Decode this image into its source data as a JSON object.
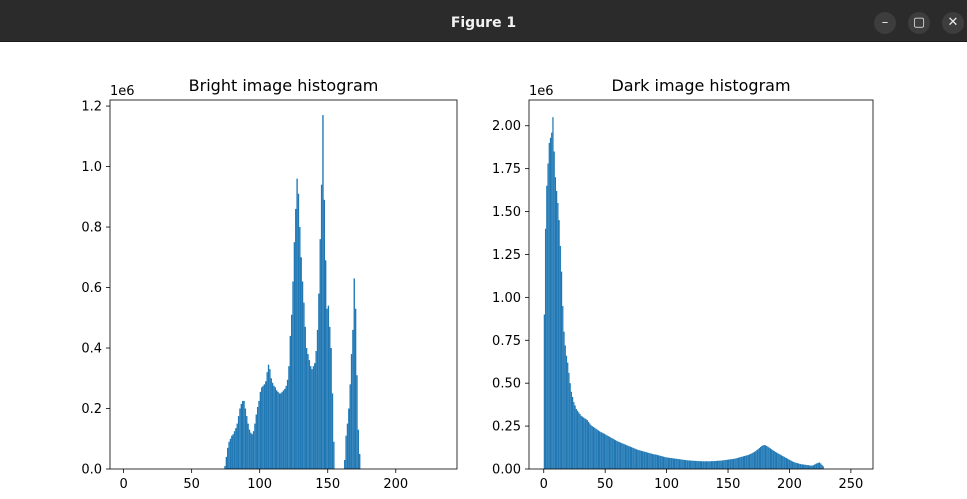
{
  "window": {
    "title": "Figure 1",
    "controls": {
      "minimize": "–",
      "maximize": "▢",
      "close": "✕"
    }
  },
  "colors": {
    "bar": "#1f77b4",
    "titlebar": "#2b2b2b"
  },
  "chart_data": [
    {
      "type": "bar",
      "title": "Bright image histogram",
      "xlabel": "",
      "ylabel": "",
      "xlim": [
        -10,
        245
      ],
      "ylim": [
        0,
        1220000
      ],
      "x_ticks": [
        0,
        50,
        100,
        150,
        200
      ],
      "x_tick_labels": [
        "0",
        "50",
        "100",
        "150",
        "200"
      ],
      "y_ticks": [
        0,
        200000,
        400000,
        600000,
        800000,
        1000000,
        1200000
      ],
      "y_tick_labels": [
        "0.0",
        "0.2",
        "0.4",
        "0.6",
        "0.8",
        "1.0",
        "1.2"
      ],
      "y_offset_label": "1e6",
      "grid": false,
      "bins": {
        "start": 0,
        "values": [
          0,
          0,
          0,
          0,
          0,
          0,
          0,
          0,
          0,
          0,
          0,
          0,
          0,
          0,
          0,
          0,
          0,
          0,
          0,
          0,
          0,
          0,
          0,
          0,
          0,
          0,
          0,
          0,
          0,
          0,
          0,
          0,
          0,
          0,
          0,
          0,
          0,
          0,
          0,
          0,
          0,
          0,
          0,
          0,
          0,
          0,
          0,
          0,
          0,
          0,
          0,
          0,
          0,
          0,
          0,
          0,
          0,
          0,
          0,
          0,
          0,
          0,
          0,
          0,
          0,
          0,
          0,
          0,
          0,
          0,
          0,
          0,
          0,
          0,
          10000,
          40000,
          70000,
          90000,
          100000,
          110000,
          115000,
          125000,
          135000,
          150000,
          175000,
          200000,
          215000,
          225000,
          225000,
          200000,
          175000,
          150000,
          130000,
          120000,
          115000,
          125000,
          150000,
          180000,
          205000,
          225000,
          255000,
          270000,
          275000,
          280000,
          290000,
          320000,
          345000,
          330000,
          300000,
          285000,
          275000,
          270000,
          260000,
          255000,
          250000,
          250000,
          255000,
          260000,
          265000,
          275000,
          295000,
          340000,
          440000,
          510000,
          620000,
          750000,
          860000,
          960000,
          910000,
          800000,
          700000,
          620000,
          550000,
          470000,
          400000,
          380000,
          360000,
          340000,
          330000,
          340000,
          350000,
          390000,
          460000,
          580000,
          760000,
          940000,
          1170000,
          890000,
          690000,
          530000,
          540000,
          470000,
          400000,
          250000,
          90000,
          0,
          0,
          0,
          0,
          0,
          0,
          0,
          30000,
          110000,
          150000,
          200000,
          280000,
          380000,
          460000,
          630000,
          530000,
          310000,
          130000,
          50000,
          0,
          0,
          0,
          0,
          0,
          0,
          0,
          0,
          0,
          0,
          0,
          0,
          0,
          0,
          0,
          0,
          0,
          0,
          0,
          0,
          0,
          0,
          0,
          0,
          0,
          0,
          0,
          0,
          0,
          0,
          0,
          0,
          0,
          0,
          0,
          0,
          0,
          0,
          0,
          0,
          0,
          0,
          0,
          0,
          0,
          0,
          0,
          0,
          0,
          0,
          0,
          0,
          0,
          0,
          0,
          0,
          0,
          0,
          0,
          0,
          0,
          0,
          0,
          0,
          0,
          0,
          0
        ]
      }
    },
    {
      "type": "bar",
      "title": "Dark image histogram",
      "xlabel": "",
      "ylabel": "",
      "xlim": [
        -12,
        268
      ],
      "ylim": [
        0,
        2150000
      ],
      "x_ticks": [
        0,
        50,
        100,
        150,
        200,
        250
      ],
      "x_tick_labels": [
        "0",
        "50",
        "100",
        "150",
        "200",
        "250"
      ],
      "y_ticks": [
        0,
        250000,
        500000,
        750000,
        1000000,
        1250000,
        1500000,
        1750000,
        2000000
      ],
      "y_tick_labels": [
        "0.00",
        "0.25",
        "0.50",
        "0.75",
        "1.00",
        "1.25",
        "1.50",
        "1.75",
        "2.00"
      ],
      "y_offset_label": "1e6",
      "grid": false,
      "bins": {
        "start": 0,
        "values": [
          900000,
          1400000,
          1650000,
          1780000,
          1900000,
          1930000,
          1960000,
          2050000,
          1850000,
          1700000,
          1620000,
          1550000,
          1450000,
          1300000,
          1150000,
          950000,
          800000,
          720000,
          660000,
          620000,
          560000,
          500000,
          450000,
          420000,
          390000,
          370000,
          350000,
          340000,
          330000,
          320000,
          310000,
          305000,
          300000,
          295000,
          290000,
          285000,
          275000,
          265000,
          255000,
          250000,
          245000,
          240000,
          235000,
          230000,
          225000,
          220000,
          215000,
          212000,
          208000,
          205000,
          200000,
          196000,
          192000,
          188000,
          184000,
          180000,
          176000,
          172000,
          168000,
          164000,
          160000,
          157000,
          154000,
          151000,
          148000,
          145000,
          142000,
          139000,
          136000,
          133000,
          130000,
          127000,
          124000,
          121000,
          118000,
          115000,
          112000,
          110000,
          108000,
          106000,
          104000,
          102000,
          100000,
          98000,
          96000,
          94000,
          92000,
          90000,
          88000,
          86000,
          85000,
          84000,
          82000,
          80000,
          78000,
          76000,
          74000,
          72000,
          70000,
          68000,
          67000,
          66000,
          65000,
          64000,
          63000,
          62000,
          61000,
          60000,
          59000,
          58000,
          57000,
          56000,
          55000,
          54000,
          53000,
          52000,
          51000,
          50000,
          50000,
          49000,
          49000,
          48000,
          48000,
          47000,
          47000,
          46000,
          46000,
          46000,
          45000,
          45000,
          45000,
          45000,
          45000,
          45000,
          45000,
          45000,
          46000,
          46000,
          46000,
          47000,
          47000,
          48000,
          48000,
          49000,
          49000,
          50000,
          51000,
          52000,
          53000,
          54000,
          55000,
          56000,
          57000,
          58000,
          59000,
          60000,
          62000,
          64000,
          66000,
          68000,
          70000,
          72000,
          74000,
          76000,
          78000,
          80000,
          82000,
          85000,
          88000,
          92000,
          96000,
          100000,
          104000,
          110000,
          116000,
          122000,
          128000,
          134000,
          138000,
          140000,
          138000,
          134000,
          130000,
          125000,
          120000,
          115000,
          110000,
          105000,
          100000,
          96000,
          92000,
          88000,
          84000,
          80000,
          76000,
          72000,
          68000,
          64000,
          60000,
          56000,
          52000,
          48000,
          44000,
          41000,
          38000,
          36000,
          34000,
          32000,
          30000,
          28000,
          27000,
          26000,
          25000,
          24000,
          23000,
          22000,
          21000,
          20000,
          20000,
          22000,
          26000,
          30000,
          34000,
          36000,
          38000,
          32000,
          24000,
          16000,
          0,
          0,
          0,
          0,
          0,
          0,
          0,
          0,
          0,
          0,
          0,
          0,
          0,
          0,
          0,
          0,
          0,
          0,
          0,
          0,
          0,
          0,
          0,
          0,
          0,
          0,
          0,
          0,
          0,
          0,
          0
        ]
      }
    }
  ]
}
